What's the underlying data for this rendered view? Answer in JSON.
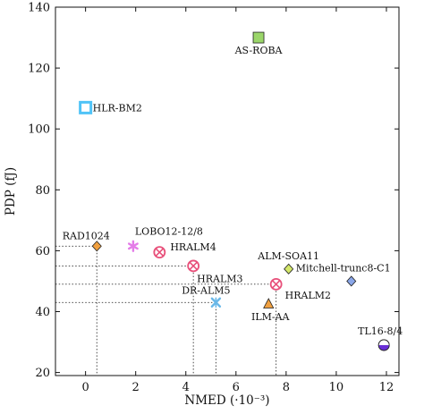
{
  "chart_data": {
    "type": "scatter",
    "title": "",
    "xlabel": "NMED (·10⁻³)",
    "ylabel": "PDP (fJ)",
    "xlim": [
      -1.2,
      12.5
    ],
    "ylim": [
      19,
      140
    ],
    "xticks": [
      "0",
      "2",
      "4",
      "6",
      "8",
      "10",
      "12"
    ],
    "yticks": [
      "20",
      "40",
      "60",
      "80",
      "100",
      "120",
      "140"
    ],
    "grid": false,
    "legend": "none",
    "points": [
      {
        "label": "AS-ROBA",
        "x": 6.9,
        "y": 130,
        "marker": "square-filled",
        "color": "#9bd66a"
      },
      {
        "label": "HLR-BM2",
        "x": 0.0,
        "y": 107,
        "marker": "square-open",
        "color": "#4fc3f7"
      },
      {
        "label": "RAD1024",
        "x": 0.45,
        "y": 61.5,
        "marker": "diamond",
        "color": "#f0a040"
      },
      {
        "label": "LOBO12-12/8",
        "x": 1.9,
        "y": 61.5,
        "marker": "asterisk",
        "color": "#e47de8"
      },
      {
        "label": "HRALM4",
        "x": 2.95,
        "y": 59.5,
        "marker": "circle-x",
        "color": "#e8507a"
      },
      {
        "label": "HRALM3",
        "x": 4.3,
        "y": 55,
        "marker": "circle-x",
        "color": "#e8507a"
      },
      {
        "label": "DR-ALM5",
        "x": 5.2,
        "y": 43,
        "marker": "star-x",
        "color": "#6ab8e8"
      },
      {
        "label": "ILM-AA",
        "x": 7.3,
        "y": 42.5,
        "marker": "triangle",
        "color": "#f0a040"
      },
      {
        "label": "HRALM2",
        "x": 7.6,
        "y": 49,
        "marker": "circle-x",
        "color": "#e8507a"
      },
      {
        "label": "ALM-SOA11",
        "x": 8.1,
        "y": 54,
        "marker": "diamond",
        "color": "#d4e86a"
      },
      {
        "label": "Mitchell-trunc8-C1",
        "x": 10.6,
        "y": 50,
        "marker": "diamond",
        "color": "#8aa6e8"
      },
      {
        "label": "TL16-8/4",
        "x": 11.9,
        "y": 29,
        "marker": "half-circle",
        "color": "#6a2fd6"
      }
    ],
    "pareto_guides": [
      {
        "x": 0.45,
        "y": 61.5
      },
      {
        "x": 4.3,
        "y": 55
      },
      {
        "x": 5.2,
        "y": 43
      },
      {
        "x": 7.6,
        "y": 49
      }
    ]
  }
}
